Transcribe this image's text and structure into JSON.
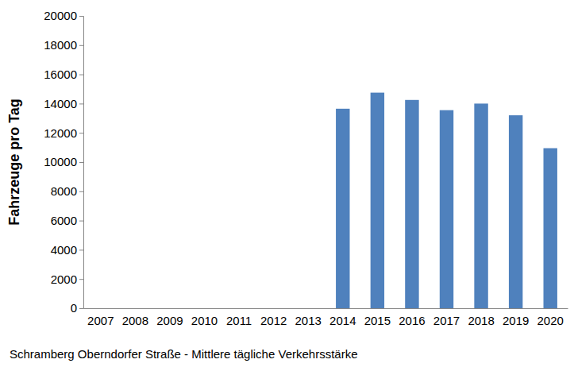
{
  "chart_data": {
    "type": "bar",
    "title": "Schramberg Oberndorfer Straße - Mittlere tägliche Verkehrsstärke",
    "y_label": "Fahrzeuge pro Tag",
    "categories": [
      "2007",
      "2008",
      "2009",
      "2010",
      "2011",
      "2012",
      "2013",
      "2014",
      "2015",
      "2016",
      "2017",
      "2018",
      "2019",
      "2020"
    ],
    "values": [
      null,
      null,
      null,
      null,
      null,
      null,
      null,
      13650,
      14750,
      14250,
      13550,
      14000,
      13200,
      10950
    ],
    "color": "#4f81bd",
    "ylim": [
      0,
      20000
    ],
    "yticks": [
      0,
      2000,
      4000,
      6000,
      8000,
      10000,
      12000,
      14000,
      16000,
      18000,
      20000
    ],
    "grid": false
  }
}
